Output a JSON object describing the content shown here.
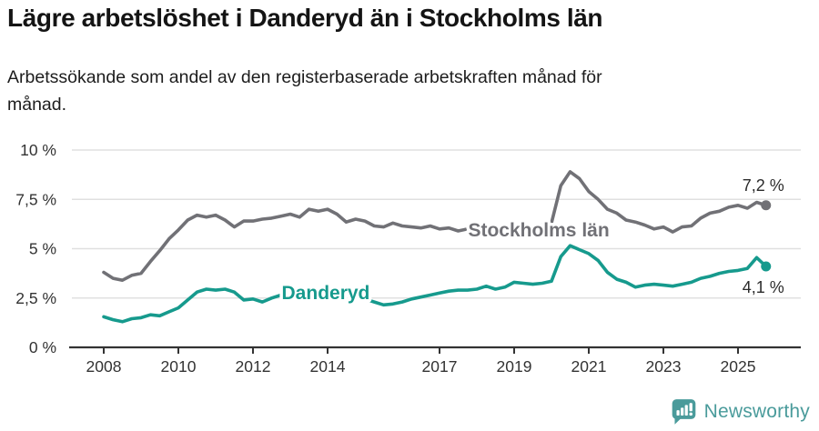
{
  "header": {
    "title": "Lägre arbetslöshet i Danderyd än i Stockholms län",
    "subtitle": "Arbetssökande som andel av den registerbaserade arbetskraften månad för månad.",
    "subtitle_lines": [
      "Arbetssökande som andel av den registerbaserade arbetskraften månad för",
      "månad."
    ]
  },
  "chart_data": {
    "type": "line",
    "title": "Lägre arbetslöshet i Danderyd än i Stockholms län",
    "subtitle": "Arbetssökande som andel av den registerbaserade arbetskraften månad för månad.",
    "x_start": 2008,
    "x_step": 0.25,
    "x_end": 2025.75,
    "ylim": [
      0,
      10
    ],
    "grid": "horizontal-only",
    "legend": "inline-series-labels",
    "axis_color": "#333333",
    "grid_color": "#e0e0e0",
    "value_label_color": "#2b2b2b",
    "background": "#ffffff",
    "xticks": [
      2008,
      2010,
      2012,
      2014,
      2017,
      2019,
      2021,
      2023,
      2025
    ],
    "yticks": [
      {
        "value": 0,
        "label": "0 %"
      },
      {
        "value": 2.5,
        "label": "2,5 %"
      },
      {
        "value": 5,
        "label": "5 %"
      },
      {
        "value": 7.5,
        "label": "7,5 %"
      },
      {
        "value": 10,
        "label": "10 %"
      }
    ],
    "series": [
      {
        "id": "stockholms-lan",
        "name": "Stockholms län",
        "color": "#717176",
        "end_label": "7,2 %",
        "end_label_position": "above",
        "label_anchor": {
          "x": 2019.66,
          "y": 5.95
        },
        "values": [
          3.8,
          3.5,
          3.4,
          3.65,
          3.75,
          4.35,
          4.9,
          5.5,
          5.95,
          6.45,
          6.7,
          6.6,
          6.7,
          6.45,
          6.1,
          6.4,
          6.4,
          6.5,
          6.55,
          6.65,
          6.75,
          6.6,
          7.0,
          6.9,
          7.0,
          6.75,
          6.35,
          6.5,
          6.4,
          6.15,
          6.1,
          6.3,
          6.15,
          6.1,
          6.05,
          6.15,
          6.0,
          6.05,
          5.9,
          6.0,
          5.9,
          6.0,
          5.9,
          6.05,
          6.0,
          5.95,
          6.05,
          6.2,
          6.3,
          8.2,
          8.9,
          8.55,
          7.9,
          7.5,
          7.0,
          6.8,
          6.45,
          6.35,
          6.2,
          6.0,
          6.1,
          5.85,
          6.1,
          6.15,
          6.55,
          6.8,
          6.9,
          7.1,
          7.2,
          7.05,
          7.35,
          7.2
        ]
      },
      {
        "id": "danderyd",
        "name": "Danderyd",
        "color": "#169a8d",
        "end_label": "4,1 %",
        "end_label_position": "below",
        "label_anchor": {
          "x": 2013.95,
          "y": 2.76
        },
        "values": [
          1.55,
          1.4,
          1.3,
          1.45,
          1.5,
          1.65,
          1.6,
          1.8,
          2.0,
          2.4,
          2.8,
          2.95,
          2.9,
          2.95,
          2.8,
          2.4,
          2.45,
          2.3,
          2.5,
          2.65,
          2.75,
          2.7,
          2.8,
          2.85,
          2.9,
          2.85,
          2.7,
          2.6,
          2.45,
          2.3,
          2.15,
          2.2,
          2.3,
          2.45,
          2.55,
          2.65,
          2.75,
          2.85,
          2.9,
          2.9,
          2.95,
          3.1,
          2.95,
          3.05,
          3.3,
          3.25,
          3.2,
          3.25,
          3.35,
          4.6,
          5.15,
          4.95,
          4.75,
          4.4,
          3.8,
          3.45,
          3.3,
          3.05,
          3.15,
          3.2,
          3.15,
          3.1,
          3.2,
          3.3,
          3.5,
          3.6,
          3.75,
          3.85,
          3.9,
          4.0,
          4.55,
          4.1
        ]
      }
    ]
  },
  "footer": {
    "brand": "Newsworthy",
    "brand_color": "#4a9b9b",
    "logo_icon": "bar-chart-speech-bubble"
  }
}
